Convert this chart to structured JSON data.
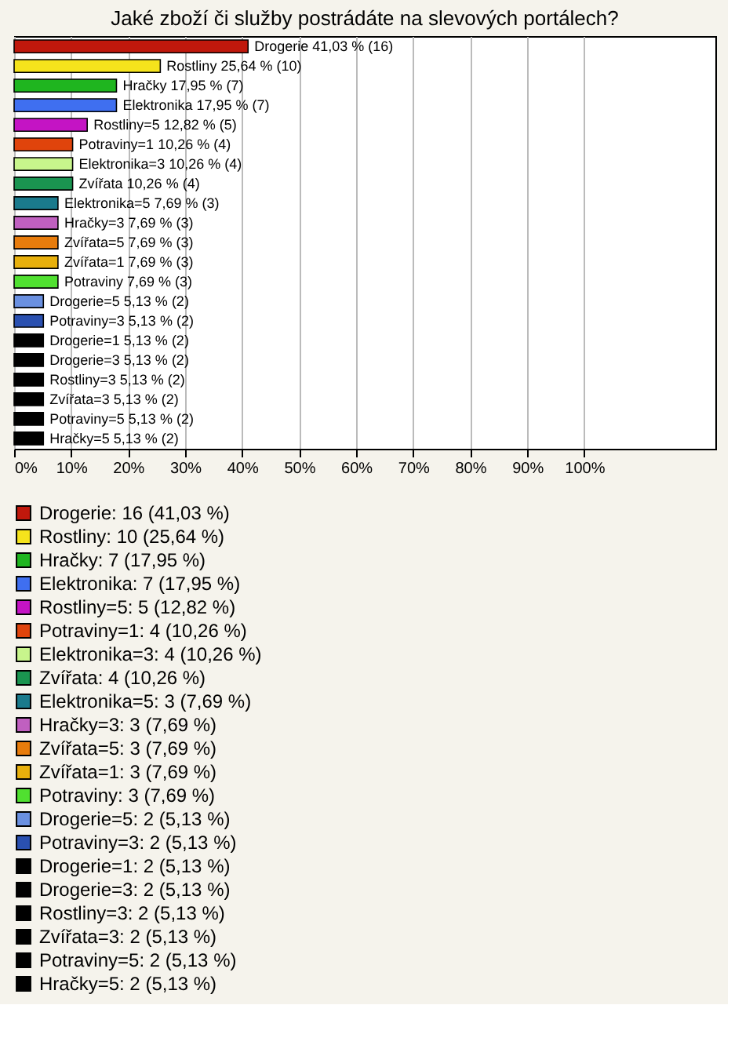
{
  "chart_data": {
    "type": "bar",
    "orientation": "horizontal",
    "title": "Jaké zboží či služby postrádáte na slevových portálech?",
    "categories": [
      null,
      null,
      null,
      null,
      null,
      null,
      null,
      null,
      null,
      null,
      null,
      null,
      null,
      null,
      null,
      null,
      null,
      null,
      null,
      null,
      null
    ],
    "series": [
      {
        "name": "Drogerie: 16 (41,03 %)",
        "color": "#c0180c",
        "values": [
          41.03,
          null,
          null,
          null,
          null,
          null,
          null,
          null,
          null,
          null,
          null,
          null,
          null,
          null,
          null,
          null,
          null,
          null,
          null,
          null,
          null
        ],
        "value_labels": [
          "Drogerie 41,03 % (16)",
          null,
          null,
          null,
          null,
          null,
          null,
          null,
          null,
          null,
          null,
          null,
          null,
          null,
          null,
          null,
          null,
          null,
          null,
          null,
          null
        ]
      },
      {
        "name": "Rostliny: 10 (25,64 %)",
        "color": "#f5e31c",
        "values": [
          null,
          25.64,
          null,
          null,
          null,
          null,
          null,
          null,
          null,
          null,
          null,
          null,
          null,
          null,
          null,
          null,
          null,
          null,
          null,
          null,
          null
        ],
        "value_labels": [
          null,
          "Rostliny 25,64 % (10)",
          null,
          null,
          null,
          null,
          null,
          null,
          null,
          null,
          null,
          null,
          null,
          null,
          null,
          null,
          null,
          null,
          null,
          null,
          null
        ]
      },
      {
        "name": "Hračky: 7 (17,95 %)",
        "color": "#1fb51f",
        "values": [
          null,
          null,
          17.95,
          null,
          null,
          null,
          null,
          null,
          null,
          null,
          null,
          null,
          null,
          null,
          null,
          null,
          null,
          null,
          null,
          null,
          null
        ],
        "value_labels": [
          null,
          null,
          "Hračky 17,95 % (7)",
          null,
          null,
          null,
          null,
          null,
          null,
          null,
          null,
          null,
          null,
          null,
          null,
          null,
          null,
          null,
          null,
          null,
          null
        ]
      },
      {
        "name": "Elektronika: 7 (17,95 %)",
        "color": "#3f6ff0",
        "values": [
          null,
          null,
          null,
          17.95,
          null,
          null,
          null,
          null,
          null,
          null,
          null,
          null,
          null,
          null,
          null,
          null,
          null,
          null,
          null,
          null,
          null
        ],
        "value_labels": [
          null,
          null,
          null,
          "Elektronika 17,95 % (7)",
          null,
          null,
          null,
          null,
          null,
          null,
          null,
          null,
          null,
          null,
          null,
          null,
          null,
          null,
          null,
          null,
          null
        ]
      },
      {
        "name": "Rostliny=5: 5 (12,82 %)",
        "color": "#c414c4",
        "values": [
          null,
          null,
          null,
          null,
          12.82,
          null,
          null,
          null,
          null,
          null,
          null,
          null,
          null,
          null,
          null,
          null,
          null,
          null,
          null,
          null,
          null
        ],
        "value_labels": [
          null,
          null,
          null,
          null,
          "Rostliny=5 12,82 % (5)",
          null,
          null,
          null,
          null,
          null,
          null,
          null,
          null,
          null,
          null,
          null,
          null,
          null,
          null,
          null,
          null
        ]
      },
      {
        "name": "Potraviny=1: 4 (10,26 %)",
        "color": "#e0440c",
        "values": [
          null,
          null,
          null,
          null,
          null,
          10.26,
          null,
          null,
          null,
          null,
          null,
          null,
          null,
          null,
          null,
          null,
          null,
          null,
          null,
          null,
          null
        ],
        "value_labels": [
          null,
          null,
          null,
          null,
          null,
          "Potraviny=1 10,26 % (4)",
          null,
          null,
          null,
          null,
          null,
          null,
          null,
          null,
          null,
          null,
          null,
          null,
          null,
          null,
          null
        ]
      },
      {
        "name": "Elektronika=3: 4 (10,26 %)",
        "color": "#c8f58c",
        "values": [
          null,
          null,
          null,
          null,
          null,
          null,
          10.26,
          null,
          null,
          null,
          null,
          null,
          null,
          null,
          null,
          null,
          null,
          null,
          null,
          null,
          null
        ],
        "value_labels": [
          null,
          null,
          null,
          null,
          null,
          null,
          "Elektronika=3 10,26 % (4)",
          null,
          null,
          null,
          null,
          null,
          null,
          null,
          null,
          null,
          null,
          null,
          null,
          null,
          null
        ]
      },
      {
        "name": "Zvířata: 4 (10,26 %)",
        "color": "#1a9450",
        "values": [
          null,
          null,
          null,
          null,
          null,
          null,
          null,
          10.26,
          null,
          null,
          null,
          null,
          null,
          null,
          null,
          null,
          null,
          null,
          null,
          null,
          null
        ],
        "value_labels": [
          null,
          null,
          null,
          null,
          null,
          null,
          null,
          "Zvířata 10,26 % (4)",
          null,
          null,
          null,
          null,
          null,
          null,
          null,
          null,
          null,
          null,
          null,
          null,
          null
        ]
      },
      {
        "name": "Elektronika=5: 3 (7,69 %)",
        "color": "#1a7a8c",
        "values": [
          null,
          null,
          null,
          null,
          null,
          null,
          null,
          null,
          7.69,
          null,
          null,
          null,
          null,
          null,
          null,
          null,
          null,
          null,
          null,
          null,
          null
        ],
        "value_labels": [
          null,
          null,
          null,
          null,
          null,
          null,
          null,
          null,
          "Elektronika=5 7,69 % (3)",
          null,
          null,
          null,
          null,
          null,
          null,
          null,
          null,
          null,
          null,
          null,
          null
        ]
      },
      {
        "name": "Hračky=3: 3 (7,69 %)",
        "color": "#c060c0",
        "values": [
          null,
          null,
          null,
          null,
          null,
          null,
          null,
          null,
          null,
          7.69,
          null,
          null,
          null,
          null,
          null,
          null,
          null,
          null,
          null,
          null,
          null
        ],
        "value_labels": [
          null,
          null,
          null,
          null,
          null,
          null,
          null,
          null,
          null,
          "Hračky=3 7,69 % (3)",
          null,
          null,
          null,
          null,
          null,
          null,
          null,
          null,
          null,
          null,
          null
        ]
      },
      {
        "name": "Zvířata=5: 3 (7,69 %)",
        "color": "#e87c0c",
        "values": [
          null,
          null,
          null,
          null,
          null,
          null,
          null,
          null,
          null,
          null,
          7.69,
          null,
          null,
          null,
          null,
          null,
          null,
          null,
          null,
          null,
          null
        ],
        "value_labels": [
          null,
          null,
          null,
          null,
          null,
          null,
          null,
          null,
          null,
          null,
          "Zvířata=5 7,69 % (3)",
          null,
          null,
          null,
          null,
          null,
          null,
          null,
          null,
          null,
          null
        ]
      },
      {
        "name": "Zvířata=1: 3 (7,69 %)",
        "color": "#e8b00c",
        "values": [
          null,
          null,
          null,
          null,
          null,
          null,
          null,
          null,
          null,
          null,
          null,
          7.69,
          null,
          null,
          null,
          null,
          null,
          null,
          null,
          null,
          null
        ],
        "value_labels": [
          null,
          null,
          null,
          null,
          null,
          null,
          null,
          null,
          null,
          null,
          null,
          "Zvířata=1 7,69 % (3)",
          null,
          null,
          null,
          null,
          null,
          null,
          null,
          null,
          null
        ]
      },
      {
        "name": "Potraviny: 3 (7,69 %)",
        "color": "#50e030",
        "values": [
          null,
          null,
          null,
          null,
          null,
          null,
          null,
          null,
          null,
          null,
          null,
          null,
          7.69,
          null,
          null,
          null,
          null,
          null,
          null,
          null,
          null
        ],
        "value_labels": [
          null,
          null,
          null,
          null,
          null,
          null,
          null,
          null,
          null,
          null,
          null,
          null,
          "Potraviny 7,69 % (3)",
          null,
          null,
          null,
          null,
          null,
          null,
          null,
          null
        ]
      },
      {
        "name": "Drogerie=5: 2 (5,13 %)",
        "color": "#6a90e0",
        "values": [
          null,
          null,
          null,
          null,
          null,
          null,
          null,
          null,
          null,
          null,
          null,
          null,
          null,
          5.13,
          null,
          null,
          null,
          null,
          null,
          null,
          null
        ],
        "value_labels": [
          null,
          null,
          null,
          null,
          null,
          null,
          null,
          null,
          null,
          null,
          null,
          null,
          null,
          "Drogerie=5 5,13 % (2)",
          null,
          null,
          null,
          null,
          null,
          null,
          null
        ]
      },
      {
        "name": "Potraviny=3: 2 (5,13 %)",
        "color": "#2a50b0",
        "values": [
          null,
          null,
          null,
          null,
          null,
          null,
          null,
          null,
          null,
          null,
          null,
          null,
          null,
          null,
          5.13,
          null,
          null,
          null,
          null,
          null,
          null
        ],
        "value_labels": [
          null,
          null,
          null,
          null,
          null,
          null,
          null,
          null,
          null,
          null,
          null,
          null,
          null,
          null,
          "Potraviny=3 5,13 % (2)",
          null,
          null,
          null,
          null,
          null,
          null
        ]
      },
      {
        "name": "Drogerie=1: 2 (5,13 %)",
        "color": "#000000",
        "values": [
          null,
          null,
          null,
          null,
          null,
          null,
          null,
          null,
          null,
          null,
          null,
          null,
          null,
          null,
          null,
          5.13,
          null,
          null,
          null,
          null,
          null
        ],
        "value_labels": [
          null,
          null,
          null,
          null,
          null,
          null,
          null,
          null,
          null,
          null,
          null,
          null,
          null,
          null,
          null,
          "Drogerie=1 5,13 % (2)",
          null,
          null,
          null,
          null,
          null
        ]
      },
      {
        "name": "Drogerie=3: 2 (5,13 %)",
        "color": "#000000",
        "values": [
          null,
          null,
          null,
          null,
          null,
          null,
          null,
          null,
          null,
          null,
          null,
          null,
          null,
          null,
          null,
          null,
          5.13,
          null,
          null,
          null,
          null
        ],
        "value_labels": [
          null,
          null,
          null,
          null,
          null,
          null,
          null,
          null,
          null,
          null,
          null,
          null,
          null,
          null,
          null,
          null,
          "Drogerie=3 5,13 % (2)",
          null,
          null,
          null,
          null
        ]
      },
      {
        "name": "Rostliny=3: 2 (5,13 %)",
        "color": "#000000",
        "values": [
          null,
          null,
          null,
          null,
          null,
          null,
          null,
          null,
          null,
          null,
          null,
          null,
          null,
          null,
          null,
          null,
          null,
          5.13,
          null,
          null,
          null
        ],
        "value_labels": [
          null,
          null,
          null,
          null,
          null,
          null,
          null,
          null,
          null,
          null,
          null,
          null,
          null,
          null,
          null,
          null,
          null,
          "Rostliny=3 5,13 % (2)",
          null,
          null,
          null
        ]
      },
      {
        "name": "Zvířata=3: 2 (5,13 %)",
        "color": "#000000",
        "values": [
          null,
          null,
          null,
          null,
          null,
          null,
          null,
          null,
          null,
          null,
          null,
          null,
          null,
          null,
          null,
          null,
          null,
          null,
          5.13,
          null,
          null
        ],
        "value_labels": [
          null,
          null,
          null,
          null,
          null,
          null,
          null,
          null,
          null,
          null,
          null,
          null,
          null,
          null,
          null,
          null,
          null,
          null,
          "Zvířata=3 5,13 % (2)",
          null,
          null
        ]
      },
      {
        "name": "Potraviny=5: 2 (5,13 %)",
        "color": "#000000",
        "values": [
          null,
          null,
          null,
          null,
          null,
          null,
          null,
          null,
          null,
          null,
          null,
          null,
          null,
          null,
          null,
          null,
          null,
          null,
          null,
          5.13,
          null
        ],
        "value_labels": [
          null,
          null,
          null,
          null,
          null,
          null,
          null,
          null,
          null,
          null,
          null,
          null,
          null,
          null,
          null,
          null,
          null,
          null,
          null,
          "Potraviny=5 5,13 % (2)",
          null
        ]
      },
      {
        "name": "Hračky=5: 2 (5,13 %)",
        "color": "#000000",
        "values": [
          null,
          null,
          null,
          null,
          null,
          null,
          null,
          null,
          null,
          null,
          null,
          null,
          null,
          null,
          null,
          null,
          null,
          null,
          null,
          null,
          5.13
        ],
        "value_labels": [
          null,
          null,
          null,
          null,
          null,
          null,
          null,
          null,
          null,
          null,
          null,
          null,
          null,
          null,
          null,
          null,
          null,
          null,
          null,
          null,
          "Hračky=5 5,13 % (2)"
        ]
      }
    ],
    "xlim": [
      0,
      123
    ],
    "xticks": [
      {
        "value": 0,
        "label": "0%"
      },
      {
        "value": 10,
        "label": "10%"
      },
      {
        "value": 20,
        "label": "20%"
      },
      {
        "value": 30,
        "label": "30%"
      },
      {
        "value": 40,
        "label": "40%"
      },
      {
        "value": 50,
        "label": "50%"
      },
      {
        "value": 60,
        "label": "60%"
      },
      {
        "value": 70,
        "label": "70%"
      },
      {
        "value": 80,
        "label": "80%"
      },
      {
        "value": 90,
        "label": "90%"
      },
      {
        "value": 100,
        "label": "100%"
      }
    ],
    "grid": "x",
    "legend": "bottom",
    "tick_labels": "x"
  }
}
